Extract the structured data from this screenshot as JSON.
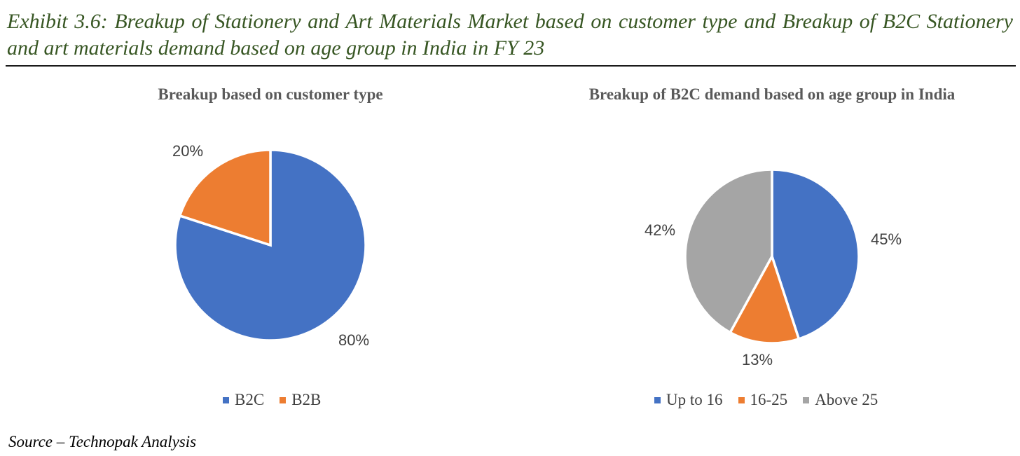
{
  "exhibit_title": "Exhibit 3.6: Breakup of Stationery and Art Materials Market based on customer type and Breakup of B2C Stationery and art materials demand based on age group in India in FY 23",
  "source": "Source – Technopak Analysis",
  "colors": {
    "title": "#375623",
    "blue": "#4472C4",
    "orange": "#ED7D31",
    "gray": "#A5A5A5"
  },
  "chart_data": [
    {
      "type": "pie",
      "title": "Breakup based on customer type",
      "legend_position": "bottom",
      "start_angle_deg": 0,
      "direction": "clockwise",
      "slices": [
        {
          "label": "B2C",
          "value": 80,
          "display": "80%",
          "color": "#4472C4"
        },
        {
          "label": "B2B",
          "value": 20,
          "display": "20%",
          "color": "#ED7D31"
        }
      ]
    },
    {
      "type": "pie",
      "title": "Breakup of B2C demand based on age group in India",
      "legend_position": "bottom",
      "start_angle_deg": 0,
      "direction": "clockwise",
      "slices": [
        {
          "label": "Up to 16",
          "value": 45,
          "display": "45%",
          "color": "#4472C4"
        },
        {
          "label": "16-25",
          "value": 13,
          "display": "13%",
          "color": "#ED7D31"
        },
        {
          "label": "Above 25",
          "value": 42,
          "display": "42%",
          "color": "#A5A5A5"
        }
      ]
    }
  ]
}
